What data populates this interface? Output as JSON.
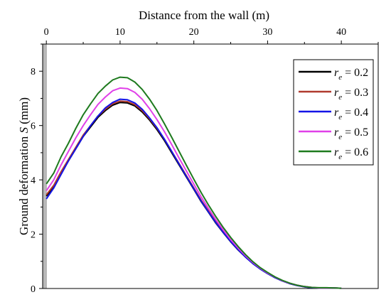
{
  "chart_data": {
    "type": "line",
    "title": "",
    "xlabel": "Distance from the wall (m)",
    "ylabel_main": "Ground deformation ",
    "ylabel_symbol": "S",
    "ylabel_unit": " (mm)",
    "xlim": [
      -0.5,
      45
    ],
    "ylim": [
      0,
      9
    ],
    "xticks": [
      0,
      10,
      20,
      30,
      40
    ],
    "yticks": [
      0,
      2,
      4,
      6,
      8
    ],
    "x_axis_position": "top",
    "grid": false,
    "legend_position": "top-right",
    "legend_symbol": "r",
    "legend_subscript": "e",
    "series": [
      {
        "name": "0.2",
        "color": "#000000",
        "x": [
          0,
          1,
          2,
          3,
          4,
          5,
          6,
          7,
          8,
          9,
          10,
          11,
          12,
          13,
          14,
          15,
          16,
          17,
          18,
          19,
          20,
          21,
          22,
          23,
          24,
          25,
          26,
          27,
          28,
          29,
          30,
          31,
          32,
          33,
          34,
          35,
          36,
          37,
          38,
          39,
          40
        ],
        "y": [
          3.4,
          3.75,
          4.25,
          4.7,
          5.15,
          5.6,
          5.95,
          6.3,
          6.55,
          6.75,
          6.85,
          6.83,
          6.72,
          6.5,
          6.2,
          5.85,
          5.45,
          5.0,
          4.55,
          4.1,
          3.65,
          3.2,
          2.8,
          2.4,
          2.05,
          1.72,
          1.42,
          1.16,
          0.92,
          0.72,
          0.55,
          0.4,
          0.28,
          0.18,
          0.11,
          0.06,
          0.03,
          0.02,
          0.02,
          0.02,
          0.01
        ]
      },
      {
        "name": "0.3",
        "color": "#b03a2e",
        "x": [
          0,
          1,
          2,
          3,
          4,
          5,
          6,
          7,
          8,
          9,
          10,
          11,
          12,
          13,
          14,
          15,
          16,
          17,
          18,
          19,
          20,
          21,
          22,
          23,
          24,
          25,
          26,
          27,
          28,
          29,
          30,
          31,
          32,
          33,
          34,
          35,
          36,
          37,
          38,
          39,
          40
        ],
        "y": [
          3.45,
          3.8,
          4.3,
          4.75,
          5.2,
          5.65,
          6.0,
          6.35,
          6.6,
          6.8,
          6.9,
          6.88,
          6.77,
          6.55,
          6.25,
          5.9,
          5.5,
          5.05,
          4.6,
          4.15,
          3.7,
          3.25,
          2.85,
          2.45,
          2.1,
          1.76,
          1.45,
          1.18,
          0.94,
          0.73,
          0.56,
          0.41,
          0.29,
          0.19,
          0.12,
          0.07,
          0.04,
          0.02,
          0.02,
          0.02,
          0.01
        ]
      },
      {
        "name": "0.4",
        "color": "#1414e6",
        "x": [
          0,
          1,
          2,
          3,
          4,
          5,
          6,
          7,
          8,
          9,
          10,
          11,
          12,
          13,
          14,
          15,
          16,
          17,
          18,
          19,
          20,
          21,
          22,
          23,
          24,
          25,
          26,
          27,
          28,
          29,
          30,
          31,
          32,
          33,
          34,
          35,
          36,
          37,
          38,
          39,
          40
        ],
        "y": [
          3.3,
          3.7,
          4.2,
          4.7,
          5.15,
          5.6,
          6.0,
          6.35,
          6.65,
          6.85,
          6.97,
          6.95,
          6.83,
          6.6,
          6.28,
          5.92,
          5.5,
          5.05,
          4.58,
          4.12,
          3.67,
          3.22,
          2.81,
          2.42,
          2.06,
          1.73,
          1.43,
          1.16,
          0.92,
          0.72,
          0.55,
          0.4,
          0.28,
          0.18,
          0.11,
          0.06,
          0.03,
          0.02,
          0.02,
          0.02,
          0.01
        ]
      },
      {
        "name": "0.5",
        "color": "#e040e8",
        "x": [
          0,
          1,
          2,
          3,
          4,
          5,
          6,
          7,
          8,
          9,
          10,
          11,
          12,
          13,
          14,
          15,
          16,
          17,
          18,
          19,
          20,
          21,
          22,
          23,
          24,
          25,
          26,
          27,
          28,
          29,
          30,
          31,
          32,
          33,
          34,
          35,
          36,
          37,
          38,
          39,
          40
        ],
        "y": [
          3.6,
          4.0,
          4.55,
          5.05,
          5.55,
          6.0,
          6.4,
          6.78,
          7.05,
          7.28,
          7.38,
          7.36,
          7.22,
          6.97,
          6.62,
          6.22,
          5.78,
          5.3,
          4.8,
          4.32,
          3.84,
          3.37,
          2.94,
          2.53,
          2.15,
          1.8,
          1.49,
          1.21,
          0.96,
          0.75,
          0.57,
          0.42,
          0.29,
          0.19,
          0.12,
          0.07,
          0.04,
          0.02,
          0.02,
          0.02,
          0.01
        ]
      },
      {
        "name": "0.6",
        "color": "#1e7a1e",
        "x": [
          0,
          1,
          2,
          3,
          4,
          5,
          6,
          7,
          8,
          9,
          10,
          11,
          12,
          13,
          14,
          15,
          16,
          17,
          18,
          19,
          20,
          21,
          22,
          23,
          24,
          25,
          26,
          27,
          28,
          29,
          30,
          31,
          32,
          33,
          34,
          35,
          36,
          37,
          38,
          39,
          40
        ],
        "y": [
          3.85,
          4.25,
          4.85,
          5.35,
          5.9,
          6.4,
          6.8,
          7.18,
          7.45,
          7.68,
          7.78,
          7.76,
          7.6,
          7.33,
          6.97,
          6.55,
          6.07,
          5.57,
          5.05,
          4.53,
          4.02,
          3.53,
          3.07,
          2.64,
          2.24,
          1.88,
          1.55,
          1.25,
          0.99,
          0.77,
          0.59,
          0.43,
          0.3,
          0.2,
          0.12,
          0.07,
          0.04,
          0.03,
          0.03,
          0.02,
          0.01
        ]
      }
    ]
  }
}
